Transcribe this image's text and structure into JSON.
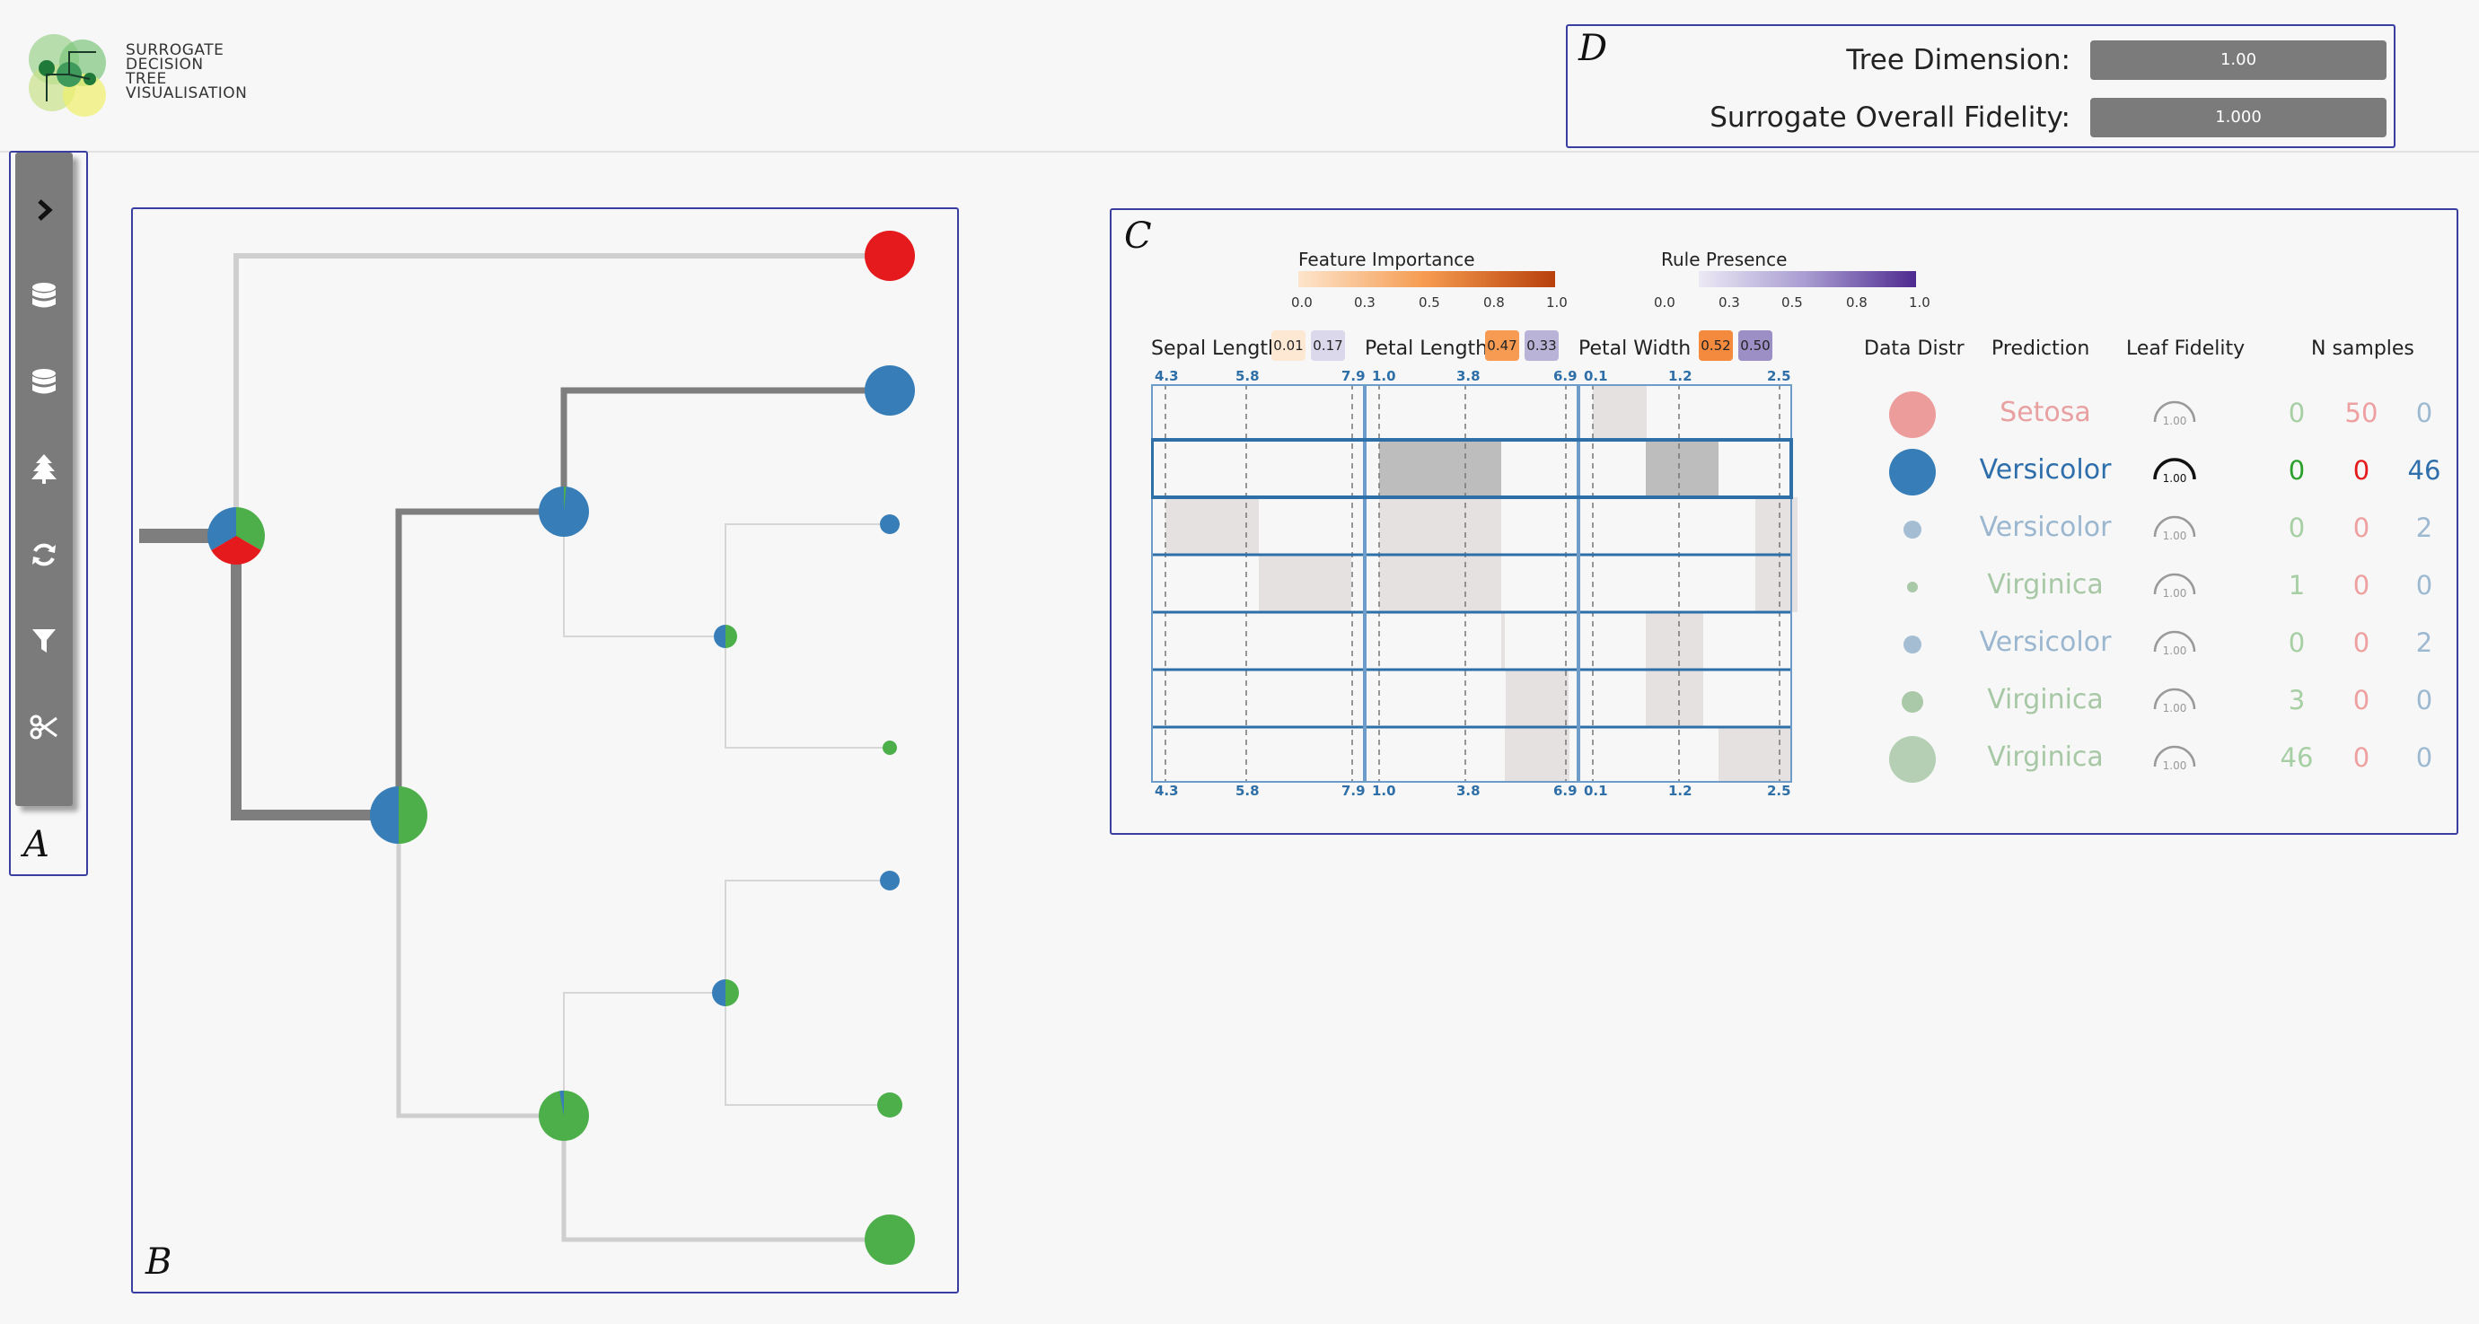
{
  "logo": {
    "lines": [
      "SURROGATE",
      "DECISION",
      "TREE",
      "VISUALISATION"
    ]
  },
  "panel_letters": {
    "a": "A",
    "b": "B",
    "c": "C",
    "d": "D"
  },
  "metrics": {
    "tree_dimension_label": "Tree Dimension:",
    "tree_dimension_value": "1.00",
    "fidelity_label": "Surrogate Overall Fidelity:",
    "fidelity_value": "1.000"
  },
  "toolbar": [
    "chevron-right-icon",
    "database-icon",
    "database-icon",
    "tree-icon",
    "refresh-icon",
    "filter-icon",
    "scissors-icon"
  ],
  "legends": {
    "feature_importance": {
      "title": "Feature Importance",
      "ticks": [
        "0.0",
        "0.3",
        "0.5",
        "0.8",
        "1.0"
      ],
      "color_from": "#fde5cc",
      "color_to": "#b8400c"
    },
    "rule_presence": {
      "title": "Rule Presence",
      "ticks": [
        "0.0",
        "0.3",
        "0.5",
        "0.8",
        "1.0"
      ],
      "color_from": "#ece9f5",
      "color_to": "#4e2a90"
    }
  },
  "features": [
    {
      "name": "Sepal Length",
      "importance": "0.01",
      "presence": "0.17",
      "imp_color": "#fde8d4",
      "pres_color": "#dcd8ec",
      "axis": [
        "4.3",
        "5.8",
        "7.9"
      ]
    },
    {
      "name": "Petal Length",
      "importance": "0.47",
      "presence": "0.33",
      "imp_color": "#f79a52",
      "pres_color": "#b9b3d8",
      "axis": [
        "1.0",
        "3.8",
        "6.9"
      ]
    },
    {
      "name": "Petal Width",
      "importance": "0.52",
      "presence": "0.50",
      "imp_color": "#f48a3e",
      "pres_color": "#9c8fc6",
      "axis": [
        "0.1",
        "1.2",
        "2.5"
      ]
    }
  ],
  "columns": {
    "data_distr": "Data Distr",
    "prediction": "Prediction",
    "leaf_fidelity": "Leaf Fidelity",
    "n_samples": "N samples"
  },
  "colors": {
    "setosa": "#e41a1c",
    "versicolor": "#377eb8",
    "virginica": "#4daf4a",
    "border": "#3a3ea0"
  },
  "leaves": [
    {
      "prediction": "Setosa",
      "fidelity": "1.00",
      "counts": [
        "0",
        "50",
        "0"
      ],
      "highlight": false,
      "pred_color": "#e9a0a0",
      "dot_color": "#ed9c9c",
      "dot_r": 26
    },
    {
      "prediction": "Versicolor",
      "fidelity": "1.00",
      "counts": [
        "0",
        "0",
        "46"
      ],
      "highlight": true,
      "pred_color": "#2e6eab",
      "dot_color": "#377eb8",
      "dot_r": 26
    },
    {
      "prediction": "Versicolor",
      "fidelity": "1.00",
      "counts": [
        "0",
        "0",
        "2"
      ],
      "highlight": false,
      "pred_color": "#9bb6cf",
      "dot_color": "#a4bdd3",
      "dot_r": 10
    },
    {
      "prediction": "Virginica",
      "fidelity": "1.00",
      "counts": [
        "1",
        "0",
        "0"
      ],
      "highlight": false,
      "pred_color": "#a7c8a5",
      "dot_color": "#aac9a8",
      "dot_r": 6
    },
    {
      "prediction": "Versicolor",
      "fidelity": "1.00",
      "counts": [
        "0",
        "0",
        "2"
      ],
      "highlight": false,
      "pred_color": "#9bb6cf",
      "dot_color": "#a4bdd3",
      "dot_r": 10
    },
    {
      "prediction": "Virginica",
      "fidelity": "1.00",
      "counts": [
        "3",
        "0",
        "0"
      ],
      "highlight": false,
      "pred_color": "#a7c8a5",
      "dot_color": "#aac9a8",
      "dot_r": 12
    },
    {
      "prediction": "Virginica",
      "fidelity": "1.00",
      "counts": [
        "46",
        "0",
        "0"
      ],
      "highlight": false,
      "pred_color": "#a7c8a5",
      "dot_color": "#b4cfb3",
      "dot_r": 26
    }
  ],
  "count_colors": [
    "#a6cfa3",
    "#eea0a0",
    "#9db8d1"
  ],
  "count_colors_highlight": [
    "#2ca02c",
    "#e41a1c",
    "#2e6eab"
  ]
}
